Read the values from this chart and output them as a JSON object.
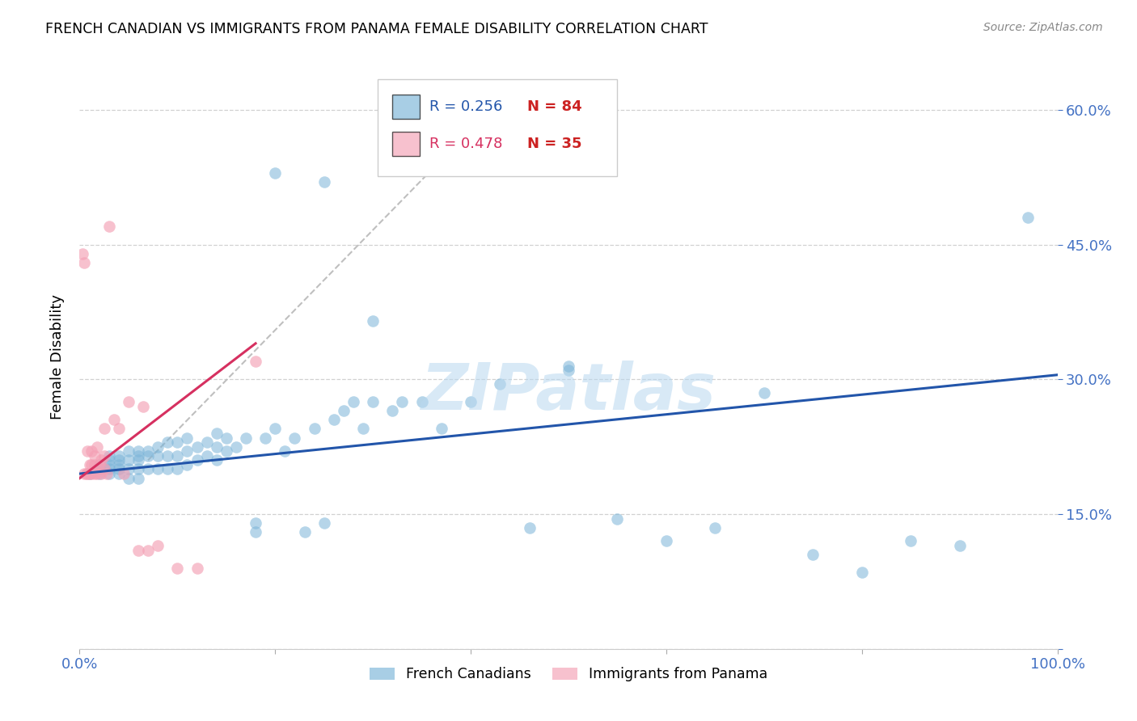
{
  "title": "FRENCH CANADIAN VS IMMIGRANTS FROM PANAMA FEMALE DISABILITY CORRELATION CHART",
  "source": "Source: ZipAtlas.com",
  "ylabel": "Female Disability",
  "xlabel": "",
  "xlim": [
    0.0,
    1.0
  ],
  "ylim": [
    0.0,
    0.65
  ],
  "xticks": [
    0.0,
    0.2,
    0.4,
    0.6,
    0.8,
    1.0
  ],
  "xticklabels": [
    "0.0%",
    "",
    "",
    "",
    "",
    "100.0%"
  ],
  "yticks": [
    0.0,
    0.15,
    0.3,
    0.45,
    0.6
  ],
  "yticklabels": [
    "",
    "15.0%",
    "30.0%",
    "45.0%",
    "60.0%"
  ],
  "ytick_color": "#4472c4",
  "xtick_color": "#4472c4",
  "legend_r1": "R = 0.256",
  "legend_n1": "N = 84",
  "legend_r2": "R = 0.478",
  "legend_n2": "N = 35",
  "blue_color": "#7ab4d8",
  "pink_color": "#f4a0b5",
  "line_blue": "#2255aa",
  "line_pink": "#d63060",
  "line_gray": "#b8b8b8",
  "n_color": "#cc2222",
  "background_color": "#ffffff",
  "grid_color": "#cccccc",
  "watermark_text": "ZIPatlas",
  "watermark_color": "#b8d8f0",
  "blue_scatter_x": [
    0.01,
    0.02,
    0.02,
    0.02,
    0.03,
    0.03,
    0.03,
    0.03,
    0.03,
    0.04,
    0.04,
    0.04,
    0.04,
    0.04,
    0.05,
    0.05,
    0.05,
    0.05,
    0.06,
    0.06,
    0.06,
    0.06,
    0.06,
    0.07,
    0.07,
    0.07,
    0.08,
    0.08,
    0.08,
    0.09,
    0.09,
    0.09,
    0.1,
    0.1,
    0.1,
    0.11,
    0.11,
    0.11,
    0.12,
    0.12,
    0.13,
    0.13,
    0.14,
    0.14,
    0.14,
    0.15,
    0.15,
    0.16,
    0.17,
    0.18,
    0.18,
    0.19,
    0.2,
    0.21,
    0.22,
    0.23,
    0.24,
    0.25,
    0.26,
    0.27,
    0.28,
    0.29,
    0.3,
    0.32,
    0.33,
    0.35,
    0.37,
    0.4,
    0.43,
    0.46,
    0.5,
    0.55,
    0.6,
    0.65,
    0.7,
    0.75,
    0.8,
    0.85,
    0.9,
    0.97,
    0.2,
    0.25,
    0.3,
    0.5
  ],
  "blue_scatter_y": [
    0.195,
    0.195,
    0.2,
    0.205,
    0.195,
    0.2,
    0.205,
    0.21,
    0.215,
    0.195,
    0.2,
    0.205,
    0.21,
    0.215,
    0.19,
    0.2,
    0.21,
    0.22,
    0.19,
    0.2,
    0.21,
    0.215,
    0.22,
    0.2,
    0.215,
    0.22,
    0.2,
    0.215,
    0.225,
    0.2,
    0.215,
    0.23,
    0.2,
    0.215,
    0.23,
    0.205,
    0.22,
    0.235,
    0.21,
    0.225,
    0.215,
    0.23,
    0.21,
    0.225,
    0.24,
    0.22,
    0.235,
    0.225,
    0.235,
    0.13,
    0.14,
    0.235,
    0.245,
    0.22,
    0.235,
    0.13,
    0.245,
    0.14,
    0.255,
    0.265,
    0.275,
    0.245,
    0.275,
    0.265,
    0.275,
    0.275,
    0.245,
    0.275,
    0.295,
    0.135,
    0.31,
    0.145,
    0.12,
    0.135,
    0.285,
    0.105,
    0.085,
    0.12,
    0.115,
    0.48,
    0.53,
    0.52,
    0.365,
    0.315
  ],
  "pink_scatter_x": [
    0.003,
    0.005,
    0.005,
    0.007,
    0.008,
    0.008,
    0.01,
    0.01,
    0.012,
    0.012,
    0.012,
    0.015,
    0.015,
    0.015,
    0.018,
    0.018,
    0.02,
    0.022,
    0.022,
    0.025,
    0.025,
    0.025,
    0.028,
    0.03,
    0.035,
    0.04,
    0.045,
    0.05,
    0.06,
    0.065,
    0.07,
    0.08,
    0.1,
    0.12,
    0.18
  ],
  "pink_scatter_y": [
    0.44,
    0.195,
    0.43,
    0.195,
    0.195,
    0.22,
    0.195,
    0.205,
    0.195,
    0.205,
    0.22,
    0.195,
    0.205,
    0.215,
    0.195,
    0.225,
    0.205,
    0.195,
    0.21,
    0.2,
    0.215,
    0.245,
    0.195,
    0.47,
    0.255,
    0.245,
    0.195,
    0.275,
    0.11,
    0.27,
    0.11,
    0.115,
    0.09,
    0.09,
    0.32
  ],
  "blue_trend_x": [
    0.0,
    1.0
  ],
  "blue_trend_y": [
    0.195,
    0.305
  ],
  "pink_trend_x": [
    0.0,
    0.18
  ],
  "pink_trend_y": [
    0.19,
    0.34
  ],
  "gray_trend_x": [
    0.07,
    0.42
  ],
  "gray_trend_y": [
    0.21,
    0.6
  ]
}
